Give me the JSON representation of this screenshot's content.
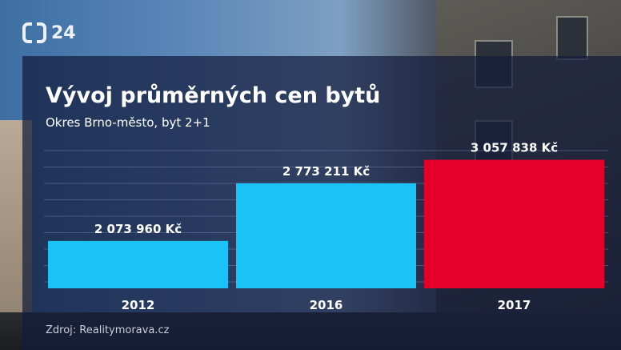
{
  "header": {
    "channel_logo": "24",
    "logo_icon": "ct-logo-icon"
  },
  "chart_data": {
    "type": "bar",
    "title": "Vývoj průměrných cen bytů",
    "subtitle": "Okres Brno-město, byt 2+1",
    "categories": [
      "2012",
      "2016",
      "2017"
    ],
    "values": [
      2073960,
      2773211,
      3057838
    ],
    "data_labels": [
      "2 073 960 Kč",
      "2 773 211 Kč",
      "3 057 838 Kč"
    ],
    "bar_colors": [
      "#19c3f5",
      "#19c3f5",
      "#e4002b"
    ],
    "ylim": [
      1500000,
      3150000
    ],
    "grid": true,
    "source": "Zdroj: Realitymorava.cz"
  }
}
